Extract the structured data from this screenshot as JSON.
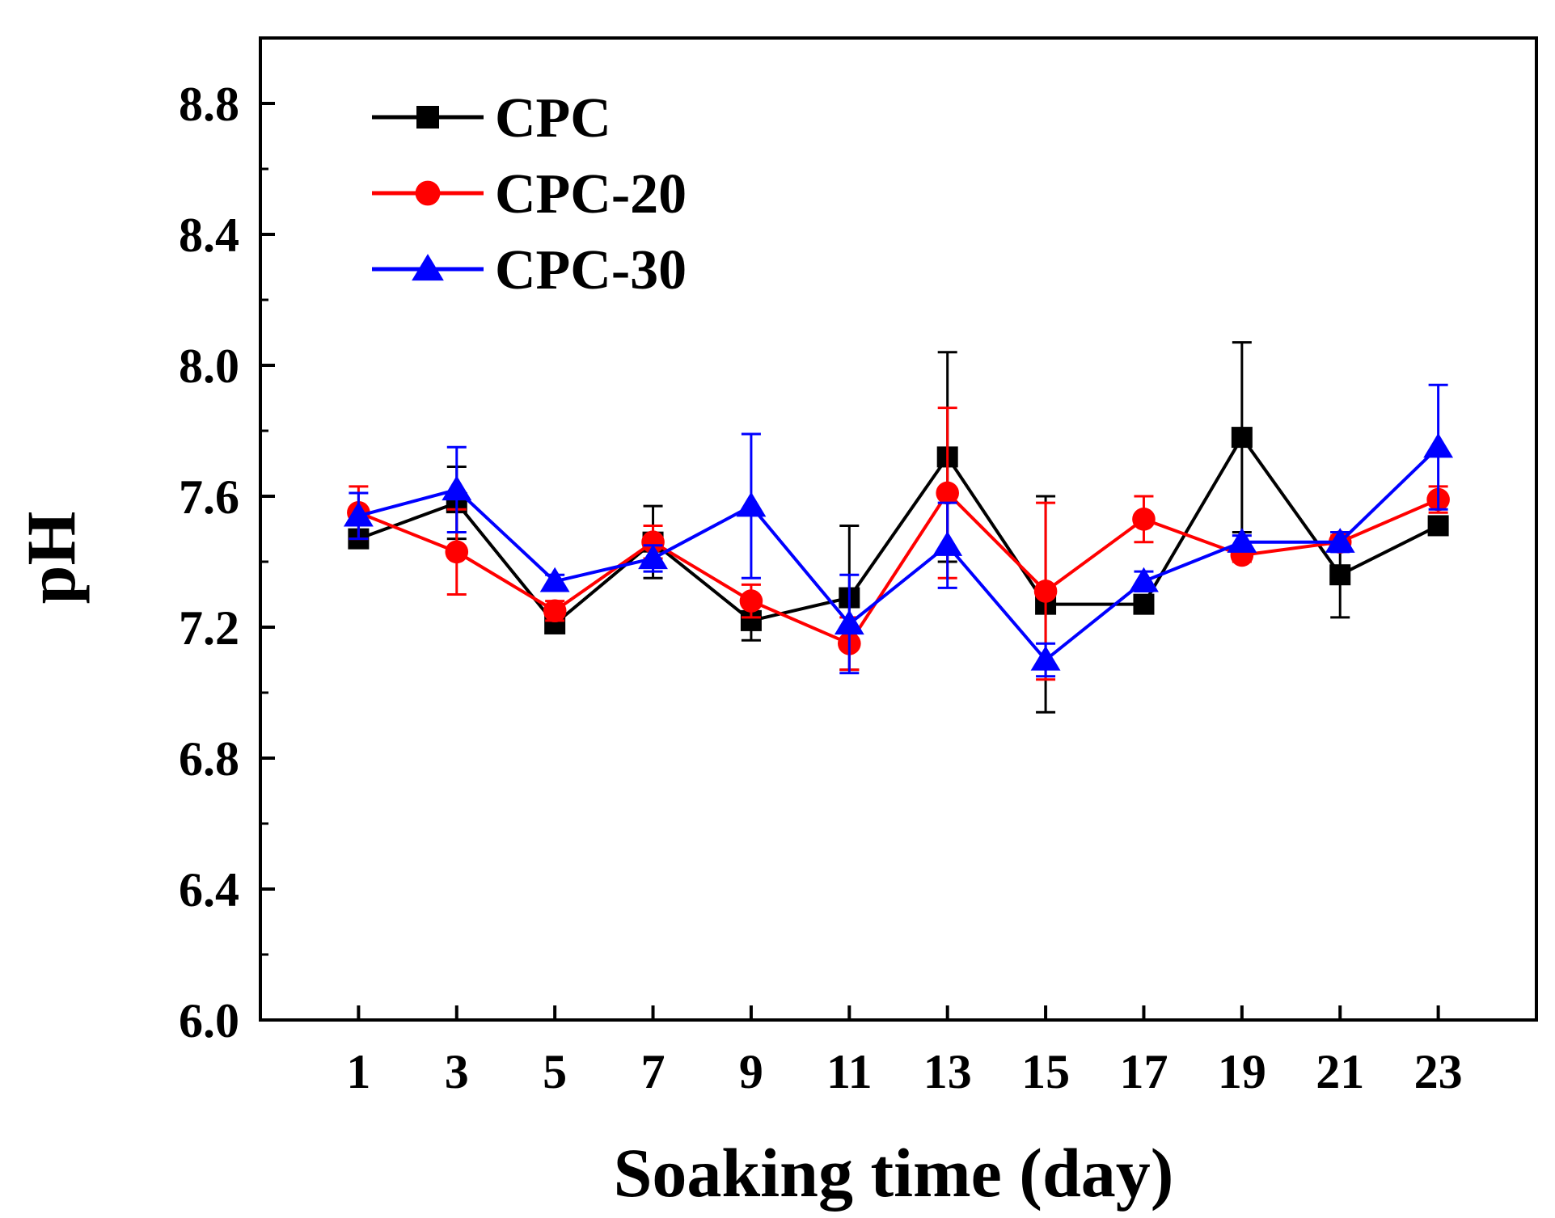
{
  "chart_data": {
    "type": "line",
    "title": "",
    "xlabel": "Soaking time (day)",
    "ylabel": "pH",
    "x": [
      1,
      3,
      5,
      7,
      9,
      11,
      13,
      15,
      17,
      19,
      21,
      23
    ],
    "x_tick_labels": [
      "1",
      "3",
      "5",
      "7",
      "9",
      "11",
      "13",
      "15",
      "17",
      "19",
      "21",
      "23"
    ],
    "xlim": [
      -1,
      25
    ],
    "ylim": [
      6.0,
      9.0
    ],
    "y_ticks": [
      6.0,
      6.4,
      6.8,
      7.2,
      7.6,
      8.0,
      8.4,
      8.8
    ],
    "y_tick_labels": [
      "6.0",
      "6.4",
      "6.8",
      "7.2",
      "7.6",
      "8.0",
      "8.4",
      "8.8"
    ],
    "grid": false,
    "legend_position": "top-left",
    "series": [
      {
        "name": "CPC",
        "color": "#000000",
        "marker": "square",
        "values": [
          7.47,
          7.58,
          7.21,
          7.46,
          7.22,
          7.29,
          7.72,
          7.27,
          7.27,
          7.78,
          7.36,
          7.51
        ],
        "errors": [
          0.02,
          0.11,
          0.02,
          0.11,
          0.06,
          0.22,
          0.32,
          0.33,
          0.02,
          0.29,
          0.13,
          0.02
        ]
      },
      {
        "name": "CPC-20",
        "color": "#ff0000",
        "marker": "circle",
        "values": [
          7.55,
          7.43,
          7.25,
          7.46,
          7.28,
          7.15,
          7.61,
          7.31,
          7.53,
          7.42,
          7.46,
          7.59
        ],
        "errors": [
          0.08,
          0.13,
          0.03,
          0.05,
          0.05,
          0.08,
          0.26,
          0.27,
          0.07,
          0.02,
          0.02,
          0.04
        ]
      },
      {
        "name": "CPC-30",
        "color": "#0000ff",
        "marker": "triangle",
        "values": [
          7.54,
          7.62,
          7.34,
          7.41,
          7.57,
          7.21,
          7.45,
          7.1,
          7.34,
          7.46,
          7.46,
          7.75
        ],
        "errors": [
          0.07,
          0.13,
          0.02,
          0.04,
          0.22,
          0.15,
          0.13,
          0.05,
          0.03,
          0.02,
          0.03,
          0.19
        ]
      }
    ]
  }
}
